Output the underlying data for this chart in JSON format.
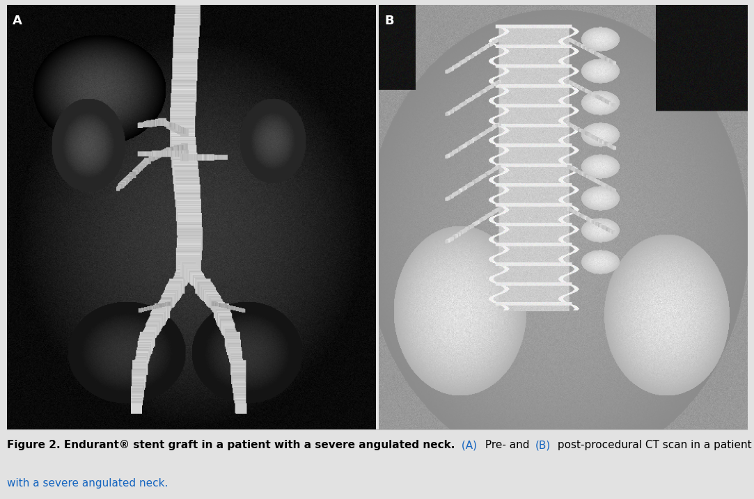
{
  "figure_title_bold": "Figure 2. Endurant® stent graft in a patient with a severe angulated neck.",
  "caption_colored_1": "(A)",
  "caption_normal_1": " Pre- and ",
  "caption_colored_2": "(B)",
  "caption_normal_2": " post-procedural CT scan in a patient",
  "caption_line2": "with a severe angulated neck.",
  "label_A": "A",
  "label_B": "B",
  "background_color": "#e2e2e2",
  "panel_bg": "#f0f0f0",
  "border_color": "#b8b8b8",
  "caption_bold_color": "#000000",
  "caption_colored_color": "#1565c0",
  "caption_normal_color": "#000000",
  "label_fg": "#ffffff",
  "label_bg": "#000000",
  "figsize": [
    10.83,
    7.17
  ],
  "dpi": 100,
  "title_fontsize": 11.0,
  "label_fontsize": 13
}
